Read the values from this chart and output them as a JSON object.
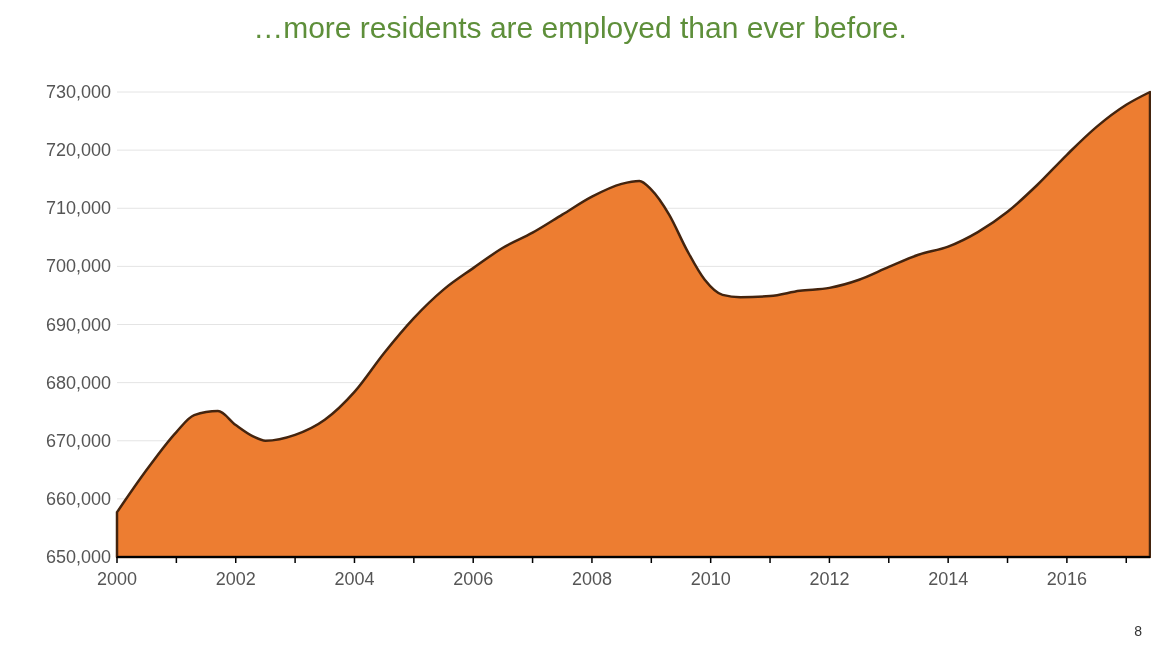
{
  "chart_data": {
    "type": "area",
    "title": "…more residents are employed than ever before.",
    "annotations": [
      "8"
    ],
    "x": [
      2000,
      2000.5,
      2001,
      2001.3,
      2001.7,
      2002,
      2002.3,
      2002.5,
      2003,
      2003.5,
      2004,
      2004.5,
      2005,
      2005.5,
      2006,
      2006.5,
      2007,
      2007.5,
      2008,
      2008.5,
      2008.8,
      2009,
      2009.3,
      2009.6,
      2009.9,
      2010.2,
      2010.5,
      2011,
      2011.5,
      2012,
      2012.5,
      2013,
      2013.5,
      2014,
      2014.5,
      2015,
      2015.5,
      2016,
      2016.5,
      2017,
      2017.4
    ],
    "series": [
      {
        "color": "#ed7d31",
        "values": [
          657700,
          665000,
          671500,
          674400,
          675100,
          672700,
          670700,
          670000,
          671000,
          673600,
          678400,
          685100,
          691100,
          696000,
          699700,
          703200,
          705800,
          708900,
          712000,
          714200,
          714700,
          713200,
          708900,
          702800,
          697700,
          695100,
          694700,
          694900,
          695800,
          696300,
          697700,
          699900,
          702000,
          703400,
          705900,
          709400,
          714000,
          719200,
          724000,
          727800,
          730000
        ]
      }
    ],
    "xlim": [
      2000,
      2017.4
    ],
    "xticks": [
      2000,
      {
        "value": 2001,
        "label": null
      },
      2002,
      {
        "value": 2003,
        "label": null
      },
      2004,
      {
        "value": 2005,
        "label": null
      },
      2006,
      {
        "value": 2007,
        "label": null
      },
      2008,
      {
        "value": 2009,
        "label": null
      },
      2010,
      {
        "value": 2011,
        "label": null
      },
      2012,
      {
        "value": 2013,
        "label": null
      },
      2014,
      {
        "value": 2015,
        "label": null
      },
      2016,
      {
        "value": 2017,
        "label": null
      }
    ],
    "ylim": [
      650000,
      730000
    ],
    "yticks": [
      {
        "value": 650000,
        "label": "650,000"
      },
      {
        "value": 660000,
        "label": "660,000"
      },
      {
        "value": 670000,
        "label": "670,000"
      },
      {
        "value": 680000,
        "label": "680,000"
      },
      {
        "value": 690000,
        "label": "690,000"
      },
      {
        "value": 700000,
        "label": "700,000"
      },
      {
        "value": 710000,
        "label": "710,000"
      },
      {
        "value": 720000,
        "label": "720,000"
      },
      {
        "value": 730000,
        "label": "730,000"
      }
    ],
    "grid": "y"
  }
}
